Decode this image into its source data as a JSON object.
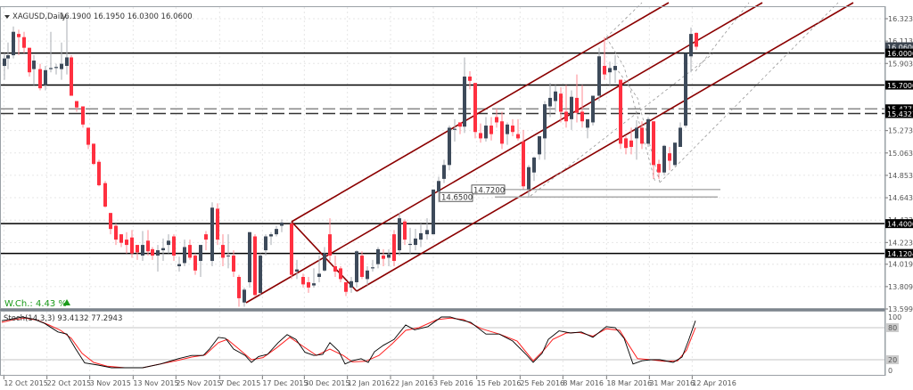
{
  "header": {
    "symbol_label": "XAGUSD,Daily",
    "ohlc": "16.1900 16.1950 16.0300 16.0600",
    "collapse_icon": "triangle-down-icon"
  },
  "weekly_change": {
    "label": "W.Ch.: 4.43 %",
    "direction_icon": "triangle-up-icon",
    "color": "#1a9a1a"
  },
  "stochastic": {
    "label": "Stoch(14,3,3) 93.4132 77.2943",
    "axis_labels": [
      "100",
      "80",
      "20",
      "0"
    ],
    "main_color": "#000000",
    "signal_color": "#ff2020"
  },
  "colors": {
    "bull_candle": "#3d4a5a",
    "bear_candle": "#ff3040",
    "channel": "#8b0000",
    "grid": "#e6e6e6",
    "hline": "#000000"
  },
  "chart_data": {
    "type": "candlestick",
    "title": "XAGUSD,Daily",
    "ohlc_last": {
      "open": 16.19,
      "high": 16.195,
      "low": 16.03,
      "close": 16.06
    },
    "price_axis": {
      "ticks": [
        "16.3230",
        "16.1130",
        "15.9030",
        "15.2730",
        "15.0630",
        "14.8530",
        "14.6430",
        "14.4330",
        "14.2230",
        "14.0190",
        "13.8090",
        "13.5990"
      ],
      "range": [
        13.599,
        16.323
      ]
    },
    "time_axis": {
      "ticks": [
        "12 Oct 2015",
        "22 Oct 2015",
        "3 Nov 2015",
        "13 Nov 2015",
        "25 Nov 2015",
        "7 Dec 2015",
        "17 Dec 2015",
        "30 Dec 2015",
        "12 Jan 2016",
        "22 Jan 2016",
        "3 Feb 2016",
        "15 Feb 2016",
        "25 Feb 2016",
        "8 Mar 2016",
        "18 Mar 2016",
        "31 Mar 2016",
        "12 Apr 2016"
      ]
    },
    "horizontal_levels": [
      {
        "price": 16.06,
        "label": "16.0600",
        "style": "current"
      },
      {
        "price": 16.0,
        "label": "16.0000",
        "style": "solid"
      },
      {
        "price": 15.7,
        "label": "15.7000",
        "style": "solid"
      },
      {
        "price": 15.4771,
        "label": "15.4771",
        "style": "dashed"
      },
      {
        "price": 15.4327,
        "label": "15.4327",
        "style": "dashed"
      },
      {
        "price": 14.4,
        "label": "14.4000",
        "style": "solid"
      },
      {
        "price": 14.1204,
        "label": "14.1204",
        "style": "solid"
      }
    ],
    "annotations": [
      {
        "label": "14.7200",
        "price": 14.72
      },
      {
        "label": "14.6500",
        "price": 14.65
      }
    ],
    "indicator": {
      "name": "Stochastic",
      "params": "14,3,3",
      "main": 93.4132,
      "signal": 77.2943,
      "levels": [
        80,
        20
      ],
      "range": [
        0,
        100
      ]
    }
  }
}
